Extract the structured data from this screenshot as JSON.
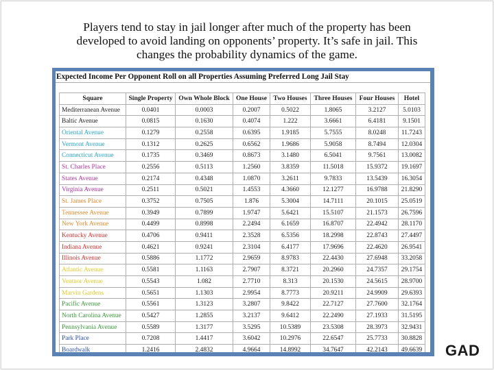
{
  "caption": {
    "line1": "Players tend to stay in jail longer after much of the property has been",
    "line2": "developed to avoid landing on opponents’ property. It’s safe in jail. This",
    "line3": "changes the probability dynamics of the game."
  },
  "table": {
    "title": "Expected Income Per Opponent Roll on all Properties Assuming Preferred Long Jail Stay",
    "headers": [
      "Square",
      "Single Property",
      "Own Whole Block",
      "One House",
      "Two Houses",
      "Three Houses",
      "Four Houses",
      "Hotel"
    ],
    "rows": [
      {
        "name": "Mediterranean Avenue",
        "color": "#222222",
        "values": [
          "0.0401",
          "0.0003",
          "0.2007",
          "0.5022",
          "1.8065",
          "3.2127",
          "5.0103"
        ]
      },
      {
        "name": "Baltic Avenue",
        "color": "#222222",
        "values": [
          "0.0815",
          "0.1630",
          "0.4074",
          "1.222",
          "3.6661",
          "6.4181",
          "9.1501"
        ]
      },
      {
        "name": "Oriental Avenue",
        "color": "#2aa6c8",
        "values": [
          "0.1279",
          "0.2558",
          "0.6395",
          "1.9185",
          "5.7555",
          "8.0248",
          "11.7243"
        ]
      },
      {
        "name": "Vermont Avenue",
        "color": "#2aa6c8",
        "values": [
          "0.1312",
          "0.2625",
          "0.6562",
          "1.9686",
          "5.9058",
          "8.7494",
          "12.0304"
        ]
      },
      {
        "name": "Connecticut Avenue",
        "color": "#2aa6c8",
        "values": [
          "0.1735",
          "0.3469",
          "0.8673",
          "3.1480",
          "6.5041",
          "9.7561",
          "13.0082"
        ]
      },
      {
        "name": "St. Charles Place",
        "color": "#b0359e",
        "values": [
          "0.2556",
          "0.5113",
          "1.2560",
          "3.8359",
          "11.5018",
          "15.9372",
          "19.1697"
        ]
      },
      {
        "name": "States Avenue",
        "color": "#b0359e",
        "values": [
          "0.2174",
          "0.4348",
          "1.0870",
          "3.2611",
          "9.7833",
          "13.5439",
          "16.3054"
        ]
      },
      {
        "name": "Virginia Avenue",
        "color": "#b0359e",
        "values": [
          "0.2511",
          "0.5021",
          "1.4553",
          "4.3660",
          "12.1277",
          "16.9788",
          "21.8290"
        ]
      },
      {
        "name": "St. James Place",
        "color": "#e08a2e",
        "values": [
          "0.3752",
          "0.7505",
          "1.876",
          "5.3004",
          "14.7111",
          "20.1015",
          "25.0519"
        ]
      },
      {
        "name": "Tennessee Avenue",
        "color": "#e08a2e",
        "values": [
          "0.3949",
          "0.7899",
          "1.9747",
          "5.6421",
          "15.5107",
          "21.1573",
          "26.7596"
        ]
      },
      {
        "name": "New York Avenue",
        "color": "#e08a2e",
        "values": [
          "0.4499",
          "0.8998",
          "2.2494",
          "6.1659",
          "16.8707",
          "22.4942",
          "28.1170"
        ]
      },
      {
        "name": "Kentucky Avenue",
        "color": "#d8302e",
        "values": [
          "0.4706",
          "0.9411",
          "2.3528",
          "6.5356",
          "18.2998",
          "22.8743",
          "27.4497"
        ]
      },
      {
        "name": "Indiana Avenue",
        "color": "#d8302e",
        "values": [
          "0.4621",
          "0.9241",
          "2.3104",
          "6.4177",
          "17.9696",
          "22.4620",
          "26.9541"
        ]
      },
      {
        "name": "Illinois Avenue",
        "color": "#d8302e",
        "values": [
          "0.5886",
          "1.1772",
          "2.9659",
          "8.9783",
          "22.4430",
          "27.6948",
          "33.2058"
        ]
      },
      {
        "name": "Atlantic Avenue",
        "color": "#e3c92a",
        "values": [
          "0.5581",
          "1.1163",
          "2.7907",
          "8.3721",
          "20.2960",
          "24.7357",
          "29.1754"
        ]
      },
      {
        "name": "Ventnor Avenue",
        "color": "#e3c92a",
        "values": [
          "0.5543",
          "1.082",
          "2.7710",
          "8.313",
          "20.1530",
          "24.5615",
          "28.9700"
        ]
      },
      {
        "name": "Marvin Gardens",
        "color": "#e3c92a",
        "values": [
          "0.5651",
          "1.1303",
          "2.9954",
          "8.7773",
          "20.9211",
          "24.9909",
          "29.6393"
        ]
      },
      {
        "name": "Pacific Avenue",
        "color": "#3a9a3a",
        "values": [
          "0.5561",
          "1.3123",
          "3.2807",
          "9.8422",
          "22.7127",
          "27.7600",
          "32.1764"
        ]
      },
      {
        "name": "North Carolina Avenue",
        "color": "#3a9a3a",
        "values": [
          "0.5427",
          "1.2855",
          "3.2137",
          "9.6412",
          "22.2490",
          "27.1933",
          "31.5195"
        ]
      },
      {
        "name": "Pennsylvania Avenue",
        "color": "#3a9a3a",
        "values": [
          "0.5589",
          "1.3177",
          "3.5295",
          "10.5389",
          "23.5308",
          "28.3973",
          "32.9431"
        ]
      },
      {
        "name": "Park Place",
        "color": "#2a4fb0",
        "values": [
          "0.7208",
          "1.4417",
          "3.6042",
          "10.2976",
          "22.6547",
          "25.7733",
          "30.8828"
        ]
      },
      {
        "name": "Boardwalk",
        "color": "#2a4fb0",
        "values": [
          "1.2416",
          "2.4832",
          "4.9664",
          "14.8992",
          "34.7647",
          "42.2143",
          "49.6639"
        ]
      }
    ]
  },
  "logo": {
    "text": "GAD"
  }
}
